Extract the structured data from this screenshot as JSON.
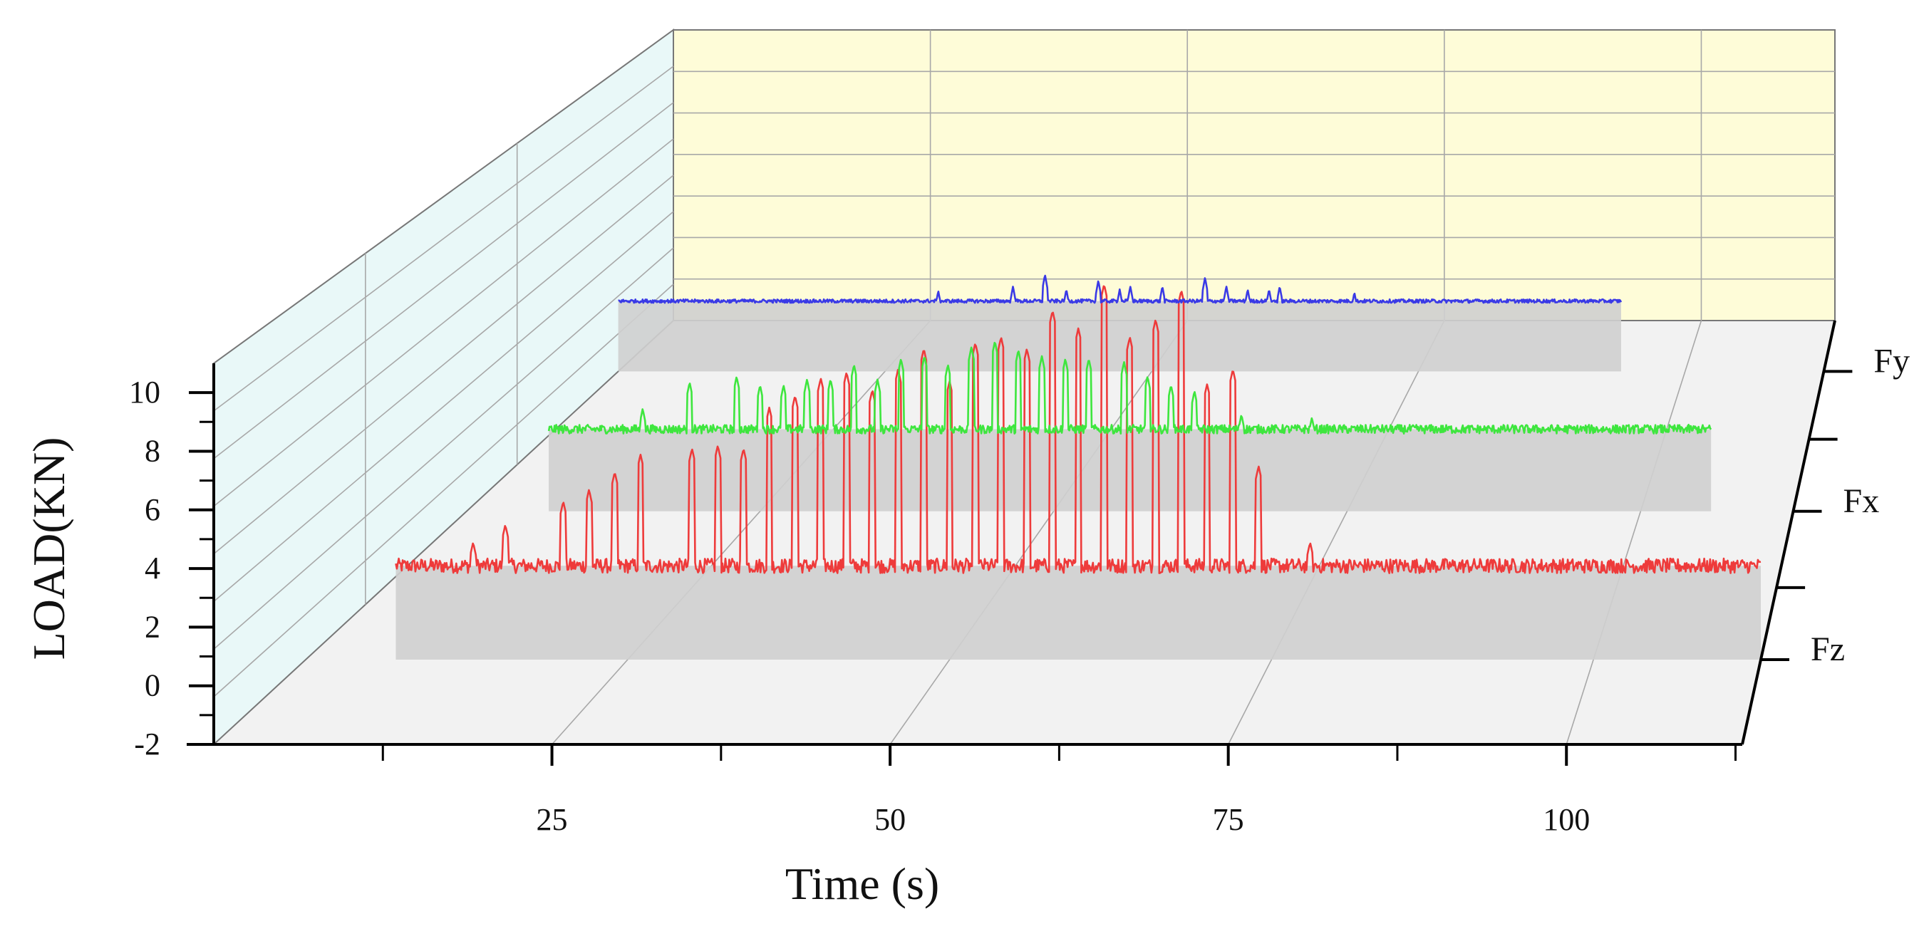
{
  "chart_data": {
    "type": "line",
    "title": "",
    "xlabel": "Time (s)",
    "ylabel": "LOAD(KN)",
    "x_ticks": [
      25,
      50,
      75,
      100
    ],
    "x_range": [
      0,
      113
    ],
    "y_ticks": [
      -2,
      0,
      2,
      4,
      6,
      8,
      10
    ],
    "y_range": [
      -2,
      11
    ],
    "grid": true,
    "colors": {
      "back_wall": "#fefcd8",
      "side_wall": "#e9f8f8",
      "floor": "#f2f2f2",
      "ribbon_shadow": "#cfcfcf",
      "grid_line": "#a8a8a8"
    },
    "series": [
      {
        "name": "Fz",
        "color": "#ee3b3b",
        "t_start": 7,
        "t_end": 113,
        "baseline": 1.2,
        "noise": 0.25,
        "spikes": [
          [
            13,
            2.0
          ],
          [
            15.5,
            2.6
          ],
          [
            20,
            3.4
          ],
          [
            22,
            3.8
          ],
          [
            24,
            4.4
          ],
          [
            26,
            5.0
          ],
          [
            30,
            5.2
          ],
          [
            32,
            5.3
          ],
          [
            34,
            5.2
          ],
          [
            36,
            6.6
          ],
          [
            38,
            7.0
          ],
          [
            40,
            7.6
          ],
          [
            42,
            7.8
          ],
          [
            44,
            7.2
          ],
          [
            46,
            7.9
          ],
          [
            48,
            8.6
          ],
          [
            50,
            7.5
          ],
          [
            52,
            8.8
          ],
          [
            54,
            9.0
          ],
          [
            56,
            8.6
          ],
          [
            58,
            9.9
          ],
          [
            60,
            9.3
          ],
          [
            62,
            10.8
          ],
          [
            64,
            9.0
          ],
          [
            66,
            9.6
          ],
          [
            68,
            10.6
          ],
          [
            70,
            7.4
          ],
          [
            72,
            7.9
          ],
          [
            74,
            4.6
          ],
          [
            78,
            2.0
          ]
        ]
      },
      {
        "name": "Fx",
        "color": "#3ee63e",
        "t_start": 7,
        "t_end": 106,
        "baseline": 0.8,
        "noise": 0.15,
        "spikes": [
          [
            15,
            1.5
          ],
          [
            19,
            2.4
          ],
          [
            23,
            2.6
          ],
          [
            25,
            2.3
          ],
          [
            27,
            2.3
          ],
          [
            29,
            2.5
          ],
          [
            31,
            2.5
          ],
          [
            33,
            3.0
          ],
          [
            35,
            2.5
          ],
          [
            37,
            3.2
          ],
          [
            39,
            3.3
          ],
          [
            41,
            3.0
          ],
          [
            43,
            3.6
          ],
          [
            45,
            3.8
          ],
          [
            47,
            3.5
          ],
          [
            49,
            3.3
          ],
          [
            51,
            3.2
          ],
          [
            53,
            3.2
          ],
          [
            56,
            3.1
          ],
          [
            58,
            2.6
          ],
          [
            60,
            2.3
          ],
          [
            62,
            2.1
          ],
          [
            66,
            1.3
          ],
          [
            72,
            1.2
          ]
        ]
      },
      {
        "name": "Fy",
        "color": "#3a3ae6",
        "t_start": 0,
        "t_end": 94,
        "baseline": 0.4,
        "noise": 0.06,
        "spikes": [
          [
            30,
            0.75
          ],
          [
            37,
            0.9
          ],
          [
            40,
            1.3
          ],
          [
            42,
            0.8
          ],
          [
            45,
            1.1
          ],
          [
            47,
            0.8
          ],
          [
            48,
            0.9
          ],
          [
            51,
            0.9
          ],
          [
            55,
            1.2
          ],
          [
            57,
            0.9
          ],
          [
            59,
            0.8
          ],
          [
            61,
            0.8
          ],
          [
            62,
            0.9
          ],
          [
            69,
            0.7
          ]
        ]
      }
    ]
  }
}
